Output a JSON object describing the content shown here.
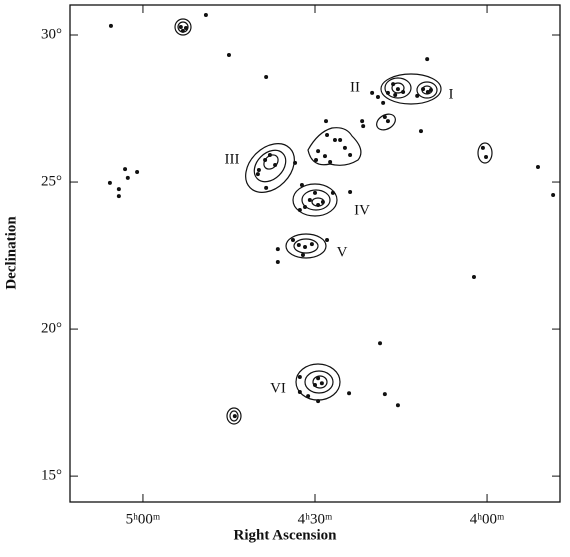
{
  "chart_data": {
    "type": "scatter",
    "xlabel": "Right Ascension",
    "ylabel": "Declination",
    "xlim": [
      5.212,
      3.788
    ],
    "ylim": [
      14.12,
      31.02
    ],
    "xticks": [
      {
        "value": 5.0,
        "label": "5ʰ00ᵐ"
      },
      {
        "value": 4.5,
        "label": "4ʰ30ᵐ"
      },
      {
        "value": 4.0,
        "label": "4ʰ00ᵐ"
      }
    ],
    "yticks": [
      {
        "value": 15,
        "label": "15°"
      },
      {
        "value": 20,
        "label": "20°"
      },
      {
        "value": 25,
        "label": "25°"
      },
      {
        "value": 30,
        "label": "30°"
      }
    ],
    "annotations": [
      "I",
      "II",
      "III",
      "IV",
      "V",
      "VI"
    ],
    "series": [
      {
        "color": "#111111",
        "x": [
          5.093,
          4.89,
          4.875,
          4.884,
          4.817,
          4.75,
          4.642,
          5.096,
          5.07,
          5.07,
          5.052,
          5.044,
          5.017,
          4.174,
          4.186,
          4.172,
          4.163,
          4.203,
          4.273,
          4.259,
          4.244,
          4.267,
          4.288,
          4.334,
          4.317,
          4.302,
          4.192,
          4.297,
          4.288,
          4.363,
          4.36,
          4.468,
          4.465,
          4.442,
          4.491,
          4.471,
          4.497,
          4.456,
          4.413,
          4.427,
          4.398,
          4.012,
          4.003,
          3.852,
          3.808,
          4.663,
          4.645,
          4.631,
          4.616,
          4.642,
          4.666,
          4.558,
          4.538,
          4.515,
          4.491,
          4.477,
          4.544,
          4.5,
          4.448,
          4.529,
          4.398,
          4.564,
          4.547,
          4.529,
          4.509,
          4.465,
          4.535,
          4.608,
          4.608,
          4.038,
          4.311,
          4.491,
          4.48,
          4.5,
          4.544,
          4.52,
          4.491,
          4.544,
          4.401,
          4.297,
          4.259,
          4.733
        ],
        "values": [
          30.31,
          30.27,
          30.24,
          30.14,
          30.68,
          29.32,
          28.57,
          24.97,
          24.76,
          24.52,
          25.44,
          25.14,
          25.34,
          29.18,
          28.16,
          28.06,
          28.13,
          27.93,
          28.33,
          28.16,
          28.06,
          27.96,
          28.03,
          28.03,
          27.89,
          27.69,
          26.73,
          27.21,
          27.07,
          27.07,
          26.9,
          27.07,
          26.6,
          26.43,
          26.05,
          25.88,
          25.75,
          25.68,
          26.16,
          26.43,
          25.92,
          26.16,
          25.85,
          25.51,
          24.56,
          25.41,
          25.75,
          25.92,
          25.58,
          24.8,
          25.27,
          25.65,
          24.9,
          24.39,
          24.22,
          24.32,
          24.05,
          24.63,
          24.63,
          24.15,
          24.66,
          23.03,
          22.86,
          22.79,
          22.89,
          23.03,
          22.52,
          22.72,
          22.28,
          21.77,
          19.52,
          18.33,
          18.16,
          18.1,
          17.86,
          17.72,
          17.55,
          18.37,
          17.82,
          17.79,
          17.41,
          17.04
        ]
      }
    ]
  }
}
